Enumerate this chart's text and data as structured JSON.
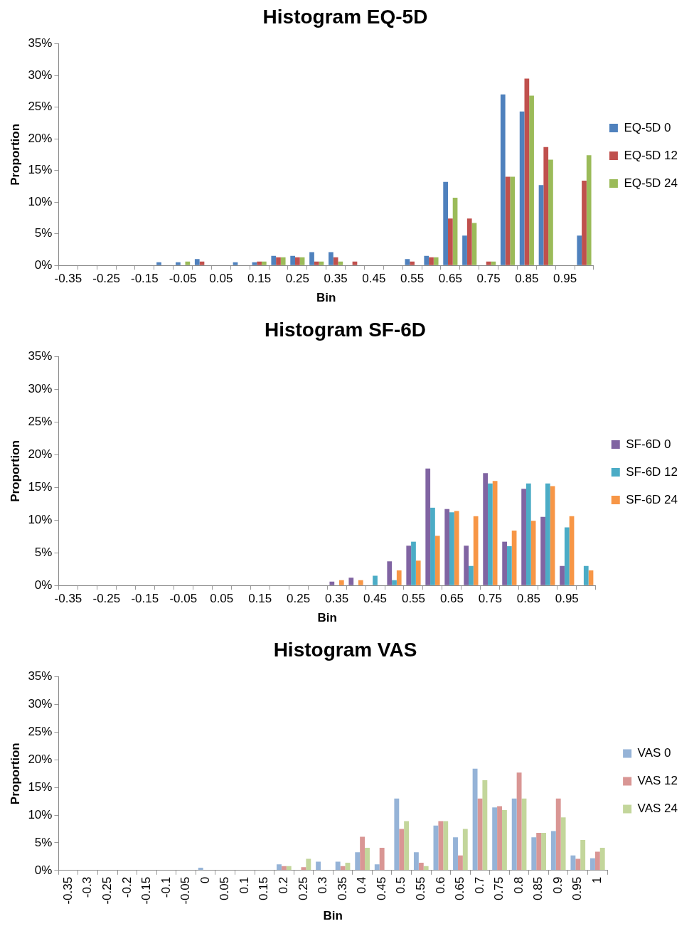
{
  "chart_data": [
    {
      "type": "bar",
      "title": "Histogram EQ-5D",
      "xlabel": "Bin",
      "ylabel": "Proportion",
      "legend": "right",
      "categories": [
        "-0.35",
        null,
        "-0.25",
        null,
        "-0.15",
        null,
        "-0.05",
        null,
        "0.05",
        null,
        "0.15",
        null,
        "0.25",
        null,
        "0.35",
        null,
        "0.45",
        null,
        "0.55",
        null,
        "0.65",
        null,
        "0.75",
        null,
        "0.85",
        null,
        "0.95",
        null
      ],
      "ylim": [
        0,
        35
      ],
      "yticks": [
        {
          "value": 0,
          "label": "0%"
        },
        {
          "value": 5,
          "label": "5%"
        },
        {
          "value": 10,
          "label": "10%"
        },
        {
          "value": 15,
          "label": "15%"
        },
        {
          "value": 20,
          "label": "20%"
        },
        {
          "value": 25,
          "label": "25%"
        },
        {
          "value": 30,
          "label": "30%"
        },
        {
          "value": 35,
          "label": "35%"
        }
      ],
      "series": [
        {
          "name": "EQ-5D 0",
          "color": "#4f81bd",
          "values": [
            0,
            0,
            0,
            0,
            0,
            0.5,
            0.5,
            1.0,
            0,
            0.5,
            0.5,
            1.5,
            1.5,
            2.1,
            2.1,
            0,
            0,
            0,
            1.0,
            1.5,
            13.2,
            4.7,
            0,
            27.0,
            24.3,
            12.7,
            0,
            4.7
          ]
        },
        {
          "name": "EQ-5D 12",
          "color": "#c0504d",
          "values": [
            0,
            0,
            0,
            0,
            0,
            0,
            0,
            0.6,
            0,
            0,
            0.6,
            1.3,
            1.3,
            0.6,
            1.3,
            0.6,
            0,
            0,
            0.6,
            1.3,
            7.4,
            7.4,
            0.6,
            14.0,
            29.5,
            18.7,
            0,
            13.4
          ]
        },
        {
          "name": "EQ-5D 24",
          "color": "#9bbb59",
          "values": [
            0,
            0,
            0,
            0,
            0,
            0,
            0.6,
            0,
            0,
            0,
            0.6,
            1.3,
            1.3,
            0.6,
            0.6,
            0,
            0,
            0,
            0,
            1.3,
            10.7,
            6.7,
            0.6,
            14.0,
            26.8,
            16.7,
            0,
            17.4
          ]
        }
      ]
    },
    {
      "type": "bar",
      "title": "Histogram SF-6D",
      "xlabel": "Bin",
      "ylabel": "Proportion",
      "legend": "right",
      "categories": [
        "-0.35",
        null,
        "-0.25",
        null,
        "-0.15",
        null,
        "-0.05",
        null,
        "0.05",
        null,
        "0.15",
        null,
        "0.25",
        null,
        "0.35",
        null,
        "0.45",
        null,
        "0.55",
        null,
        "0.65",
        null,
        "0.75",
        null,
        "0.85",
        null,
        "0.95",
        null
      ],
      "ylim": [
        0,
        35
      ],
      "yticks": [
        {
          "value": 0,
          "label": "0%"
        },
        {
          "value": 5,
          "label": "5%"
        },
        {
          "value": 10,
          "label": "10%"
        },
        {
          "value": 15,
          "label": "15%"
        },
        {
          "value": 20,
          "label": "20%"
        },
        {
          "value": 25,
          "label": "25%"
        },
        {
          "value": 30,
          "label": "30%"
        },
        {
          "value": 35,
          "label": "35%"
        }
      ],
      "series": [
        {
          "name": "SF-6D 0",
          "color": "#8064a2",
          "values": [
            0,
            0,
            0,
            0,
            0,
            0,
            0,
            0,
            0,
            0,
            0,
            0,
            0,
            0,
            0.6,
            1.2,
            0,
            3.7,
            6.1,
            17.9,
            11.7,
            6.1,
            17.2,
            6.7,
            14.8,
            10.5,
            3.0,
            0
          ]
        },
        {
          "name": "SF-6D 12",
          "color": "#4bacc6",
          "values": [
            0,
            0,
            0,
            0,
            0,
            0,
            0,
            0,
            0,
            0,
            0,
            0,
            0,
            0,
            0,
            0,
            1.5,
            0.8,
            6.7,
            11.9,
            11.2,
            3.0,
            15.6,
            6.0,
            15.6,
            15.6,
            8.9,
            3.0
          ]
        },
        {
          "name": "SF-6D 24",
          "color": "#f79646",
          "values": [
            0,
            0,
            0,
            0,
            0,
            0,
            0,
            0,
            0,
            0,
            0,
            0,
            0,
            0,
            0.8,
            0.8,
            0,
            2.3,
            3.8,
            7.6,
            11.4,
            10.6,
            16.0,
            8.4,
            9.9,
            15.2,
            10.6,
            2.3
          ]
        }
      ]
    },
    {
      "type": "bar",
      "title": "Histogram VAS",
      "xlabel": "Bin",
      "ylabel": "Proportion",
      "legend": "right",
      "categories": [
        "-0.35",
        "-0.3",
        "-0.25",
        "-0.2",
        "-0.15",
        "-0.1",
        "-0.05",
        "0",
        "0.05",
        "0.1",
        "0.15",
        "0.2",
        "0.25",
        "0.3",
        "0.35",
        "0.4",
        "0.45",
        "0.5",
        "0.55",
        "0.6",
        "0.65",
        "0.7",
        "0.75",
        "0.8",
        "0.85",
        "0.9",
        "0.95",
        "1"
      ],
      "ylim": [
        0,
        35
      ],
      "yticks": [
        {
          "value": 0,
          "label": "0%"
        },
        {
          "value": 5,
          "label": "5%"
        },
        {
          "value": 10,
          "label": "10%"
        },
        {
          "value": 15,
          "label": "15%"
        },
        {
          "value": 20,
          "label": "20%"
        },
        {
          "value": 25,
          "label": "25%"
        },
        {
          "value": 30,
          "label": "30%"
        },
        {
          "value": 35,
          "label": "35%"
        }
      ],
      "series": [
        {
          "name": "VAS 0",
          "color": "#95b3d7",
          "values": [
            0,
            0,
            0,
            0,
            0,
            0,
            0,
            0.5,
            0,
            0,
            0,
            1.1,
            0,
            1.6,
            1.6,
            3.3,
            1.1,
            13.0,
            3.3,
            8.1,
            6.0,
            18.4,
            11.4,
            13.0,
            6.0,
            7.1,
            2.7,
            2.2
          ]
        },
        {
          "name": "VAS 12",
          "color": "#d99694",
          "values": [
            0,
            0,
            0,
            0,
            0,
            0,
            0,
            0,
            0,
            0,
            0,
            0.8,
            0.6,
            0,
            0.8,
            6.1,
            4.1,
            7.5,
            1.4,
            8.9,
            2.7,
            13.0,
            11.6,
            17.7,
            6.8,
            13.0,
            2.1,
            3.4
          ]
        },
        {
          "name": "VAS 24",
          "color": "#c3d69b",
          "values": [
            0,
            0,
            0,
            0,
            0,
            0,
            0,
            0,
            0,
            0,
            0,
            0.8,
            2.1,
            0,
            1.4,
            4.1,
            0,
            8.9,
            0.8,
            8.9,
            7.5,
            16.3,
            10.9,
            13.0,
            6.8,
            9.6,
            5.5,
            4.1
          ]
        }
      ]
    }
  ]
}
